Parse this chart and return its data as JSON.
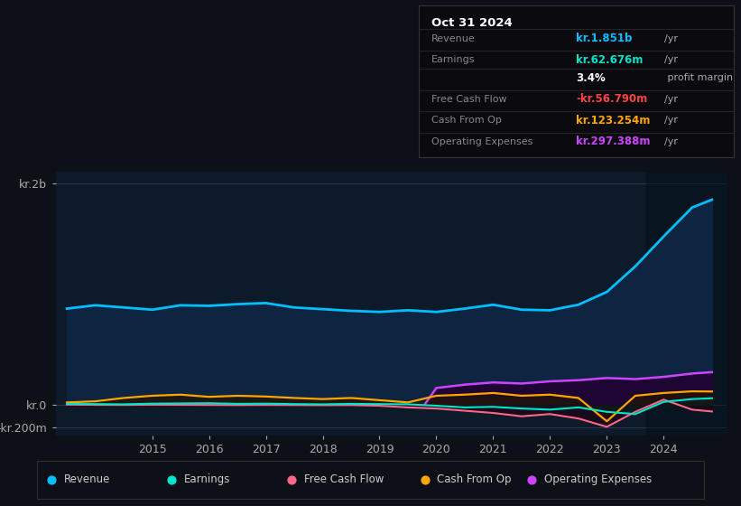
{
  "bg_color": "#0d1117",
  "plot_bg_color": "#0d1a2a",
  "title_box": {
    "date": "Oct 31 2024",
    "rows": [
      {
        "label": "Revenue",
        "value": "kr.1.851b",
        "unit": "/yr",
        "value_color": "#00bfff"
      },
      {
        "label": "Earnings",
        "value": "kr.62.676m",
        "unit": "/yr",
        "value_color": "#00e5cc"
      },
      {
        "label": "",
        "value": "3.4%",
        "unit": " profit margin",
        "value_color": "#ffffff"
      },
      {
        "label": "Free Cash Flow",
        "value": "-kr.56.790m",
        "unit": "/yr",
        "value_color": "#ff4444"
      },
      {
        "label": "Cash From Op",
        "value": "kr.123.254m",
        "unit": "/yr",
        "value_color": "#ffa500"
      },
      {
        "label": "Operating Expenses",
        "value": "kr.297.388m",
        "unit": "/yr",
        "value_color": "#cc44ff"
      }
    ]
  },
  "ytick_labels": [
    "kr.2b",
    "kr.0",
    "-kr.200m"
  ],
  "ytick_values": [
    2000000000,
    0,
    -200000000
  ],
  "xtick_labels": [
    "2015",
    "2016",
    "2017",
    "2018",
    "2019",
    "2020",
    "2021",
    "2022",
    "2023",
    "2024"
  ],
  "xtick_values": [
    2015,
    2016,
    2017,
    2018,
    2019,
    2020,
    2021,
    2022,
    2023,
    2024
  ],
  "revenue_x": [
    2013.5,
    2014.0,
    2014.5,
    2015.0,
    2015.5,
    2016.0,
    2016.5,
    2017.0,
    2017.5,
    2018.0,
    2018.5,
    2019.0,
    2019.5,
    2020.0,
    2020.5,
    2021.0,
    2021.5,
    2022.0,
    2022.5,
    2023.0,
    2023.5,
    2024.0,
    2024.5,
    2024.85
  ],
  "revenue_y": [
    870000000,
    900000000,
    880000000,
    860000000,
    900000000,
    895000000,
    910000000,
    920000000,
    880000000,
    865000000,
    850000000,
    840000000,
    855000000,
    840000000,
    870000000,
    905000000,
    860000000,
    855000000,
    905000000,
    1020000000,
    1250000000,
    1520000000,
    1780000000,
    1851000000
  ],
  "earnings_x": [
    2013.5,
    2014.0,
    2014.5,
    2015.0,
    2015.5,
    2016.0,
    2016.5,
    2017.0,
    2017.5,
    2018.0,
    2018.5,
    2019.0,
    2019.5,
    2020.0,
    2020.5,
    2021.0,
    2021.5,
    2022.0,
    2022.5,
    2023.0,
    2023.5,
    2024.0,
    2024.5,
    2024.85
  ],
  "earnings_y": [
    12000000,
    10000000,
    8000000,
    14000000,
    16000000,
    18000000,
    12000000,
    14000000,
    10000000,
    8000000,
    12000000,
    10000000,
    8000000,
    -5000000,
    -20000000,
    -15000000,
    -30000000,
    -40000000,
    -20000000,
    -60000000,
    -80000000,
    30000000,
    55000000,
    62676000
  ],
  "fcf_x": [
    2013.5,
    2014.0,
    2014.5,
    2015.0,
    2015.5,
    2016.0,
    2016.5,
    2017.0,
    2017.5,
    2018.0,
    2018.5,
    2019.0,
    2019.5,
    2020.0,
    2020.5,
    2021.0,
    2021.5,
    2022.0,
    2022.5,
    2023.0,
    2023.5,
    2024.0,
    2024.5,
    2024.85
  ],
  "fcf_y": [
    5000000,
    3000000,
    2000000,
    4000000,
    3000000,
    2000000,
    1000000,
    2000000,
    1000000,
    0,
    1000000,
    -5000000,
    -20000000,
    -30000000,
    -50000000,
    -70000000,
    -100000000,
    -80000000,
    -120000000,
    -195000000,
    -60000000,
    50000000,
    -40000000,
    -56790000
  ],
  "cashfromop_x": [
    2013.5,
    2014.0,
    2014.5,
    2015.0,
    2015.5,
    2016.0,
    2016.5,
    2017.0,
    2017.5,
    2018.0,
    2018.5,
    2019.0,
    2019.5,
    2020.0,
    2020.5,
    2021.0,
    2021.5,
    2022.0,
    2022.5,
    2023.0,
    2023.5,
    2024.0,
    2024.5,
    2024.85
  ],
  "cashfromop_y": [
    25000000,
    35000000,
    65000000,
    85000000,
    95000000,
    75000000,
    85000000,
    78000000,
    65000000,
    55000000,
    65000000,
    45000000,
    25000000,
    85000000,
    95000000,
    110000000,
    85000000,
    95000000,
    65000000,
    -145000000,
    85000000,
    110000000,
    125000000,
    123254000
  ],
  "opex_x": [
    2019.8,
    2020.0,
    2020.5,
    2021.0,
    2021.5,
    2022.0,
    2022.5,
    2023.0,
    2023.5,
    2024.0,
    2024.5,
    2024.85
  ],
  "opex_y": [
    10000000,
    155000000,
    185000000,
    205000000,
    195000000,
    215000000,
    225000000,
    245000000,
    235000000,
    255000000,
    285000000,
    297388000
  ],
  "revenue_color": "#00bfff",
  "revenue_fill": "#0d2540",
  "earnings_color": "#00e5cc",
  "earnings_fill": "#002222",
  "fcf_color": "#ff6688",
  "fcf_fill": "#220011",
  "cashfromop_color": "#ffa500",
  "cashfromop_fill": "#221500",
  "opex_color": "#cc44ff",
  "opex_fill": "#220033",
  "xlim": [
    2013.3,
    2025.1
  ],
  "ylim": [
    -270000000,
    2100000000
  ],
  "legend_items": [
    {
      "label": "Revenue",
      "color": "#00bfff"
    },
    {
      "label": "Earnings",
      "color": "#00e5cc"
    },
    {
      "label": "Free Cash Flow",
      "color": "#ff6688"
    },
    {
      "label": "Cash From Op",
      "color": "#ffa500"
    },
    {
      "label": "Operating Expenses",
      "color": "#cc44ff"
    }
  ]
}
